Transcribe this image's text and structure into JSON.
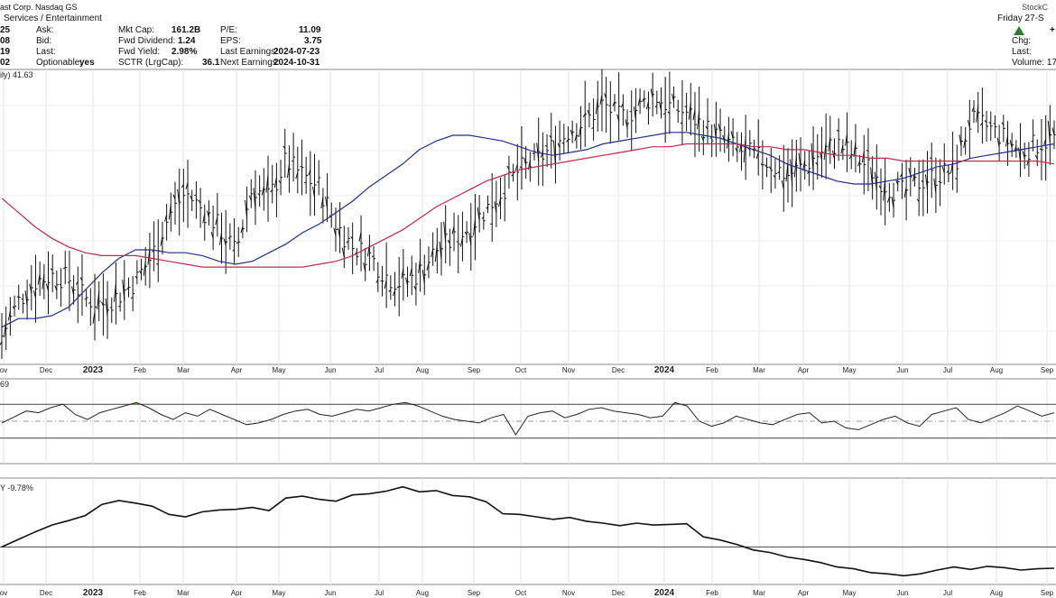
{
  "header": {
    "title": "ast Corp. Nasdaq GS",
    "sector": "Services / Entertainment",
    "date": "Friday 27-S",
    "brand": "StockC",
    "col1": [
      "25",
      "08",
      "19",
      "02"
    ],
    "col2_labels": [
      "Ask:",
      "Bid:",
      "Last:",
      "Optionable:"
    ],
    "optionable": "yes",
    "col3": [
      {
        "label": "Mkt Cap:",
        "value": "161.2B"
      },
      {
        "label": "Fwd Dividend:",
        "value": "1.24"
      },
      {
        "label": "Fwd Yield:",
        "value": "2.98%"
      },
      {
        "label": "SCTR (LrgCap):",
        "value": "36.1"
      }
    ],
    "col4": [
      {
        "label": "P/E:",
        "value": "11.09"
      },
      {
        "label": "EPS:",
        "value": "3.75"
      },
      {
        "label": "Last Earnings:",
        "value": "2024-07-23"
      },
      {
        "label": "Next Earnings:",
        "value": "2024-10-31"
      }
    ],
    "right_labels": [
      "Chg:",
      "Last:",
      "Volume: 17,"
    ],
    "plus": "+"
  },
  "chart_data": [
    {
      "type": "line",
      "panel": "price",
      "label": "ily) 41.63",
      "x_labels": [
        "ov",
        "Dec",
        "2023",
        "Feb",
        "Mar",
        "Apr",
        "May",
        "Jun",
        "Jul",
        "Aug",
        "Sep",
        "Oct",
        "Nov",
        "Dec",
        "2024",
        "Feb",
        "Mar",
        "Apr",
        "May",
        "Jun",
        "Jul",
        "Aug",
        "Sep"
      ],
      "bold_labels": [
        "2023",
        "2024"
      ],
      "series": [
        {
          "values": [
            34.0,
            35.2,
            35.9,
            36.1,
            36.0,
            35.3,
            35.1,
            35.4,
            35.9,
            36.8,
            38.2,
            39.0,
            38.4,
            37.8,
            36.9,
            39.2,
            38.8,
            40.1,
            39.6,
            39.2,
            37.9,
            37.1,
            36.8,
            36.1,
            35.8,
            36.2,
            37.0,
            37.3,
            37.8,
            38.4,
            39.1,
            39.8,
            40.1,
            40.6,
            41.2,
            41.5,
            42.1,
            41.6,
            41.9,
            42.4,
            42.0,
            41.8,
            41.3,
            40.9,
            40.5,
            40.3,
            40.0,
            39.6,
            39.9,
            40.4,
            40.7,
            40.3,
            39.8,
            39.2,
            39.0,
            39.4,
            39.6,
            39.8,
            41.5,
            41.3,
            40.9,
            40.4,
            40.7,
            40.9
          ],
          "color": "#222222"
        },
        {
          "values": [
            34.3,
            34.6,
            34.6,
            34.7,
            35.0,
            35.6,
            36.2,
            36.7,
            37.0,
            37.0,
            36.9,
            36.9,
            36.8,
            36.6,
            36.5,
            36.6,
            36.9,
            37.2,
            37.6,
            37.9,
            38.3,
            38.7,
            39.2,
            39.6,
            40.0,
            40.5,
            40.8,
            41.0,
            41.0,
            40.9,
            40.8,
            40.6,
            40.4,
            40.3,
            40.4,
            40.5,
            40.7,
            40.8,
            40.9,
            41.0,
            41.1,
            41.1,
            41.0,
            40.9,
            40.7,
            40.5,
            40.3,
            40.0,
            39.8,
            39.6,
            39.4,
            39.3,
            39.3,
            39.4,
            39.5,
            39.7,
            39.9,
            40.0,
            40.2,
            40.3,
            40.4,
            40.5,
            40.6,
            40.7
          ],
          "color": "#1f2f8f"
        },
        {
          "values": [
            38.8,
            38.3,
            37.8,
            37.4,
            37.1,
            36.9,
            36.8,
            36.8,
            36.8,
            36.7,
            36.6,
            36.5,
            36.4,
            36.4,
            36.4,
            36.4,
            36.4,
            36.4,
            36.4,
            36.5,
            36.6,
            36.8,
            37.1,
            37.4,
            37.7,
            38.1,
            38.5,
            38.8,
            39.1,
            39.4,
            39.6,
            39.8,
            39.9,
            40.0,
            40.1,
            40.2,
            40.3,
            40.4,
            40.5,
            40.6,
            40.6,
            40.7,
            40.7,
            40.7,
            40.7,
            40.6,
            40.6,
            40.5,
            40.5,
            40.4,
            40.3,
            40.3,
            40.2,
            40.2,
            40.1,
            40.1,
            40.1,
            40.1,
            40.1,
            40.1,
            40.1,
            40.1,
            40.1,
            40.0
          ],
          "color": "#c2294a"
        }
      ]
    },
    {
      "type": "line",
      "panel": "rsi",
      "label": "69",
      "ylim": [
        0,
        100
      ],
      "bands": [
        30,
        50,
        70
      ],
      "values": [
        48,
        55,
        62,
        60,
        66,
        70,
        58,
        52,
        60,
        64,
        68,
        72,
        66,
        58,
        52,
        60,
        56,
        64,
        58,
        52,
        46,
        48,
        52,
        58,
        62,
        64,
        58,
        56,
        60,
        64,
        62,
        66,
        70,
        72,
        68,
        62,
        56,
        52,
        50,
        48,
        54,
        58,
        34,
        56,
        60,
        62,
        54,
        58,
        64,
        66,
        62,
        60,
        58,
        54,
        56,
        72,
        68,
        50,
        44,
        48,
        56,
        52,
        48,
        46,
        52,
        58,
        60,
        48,
        50,
        42,
        40,
        46,
        52,
        56,
        48,
        44,
        58,
        62,
        66,
        52,
        48,
        54,
        60,
        68,
        62,
        56,
        60
      ]
    },
    {
      "type": "line",
      "panel": "relative",
      "label": "Y -9.78%",
      "values": [
        0.0,
        1.2,
        2.4,
        3.5,
        4.2,
        5.0,
        6.8,
        7.4,
        7.0,
        6.5,
        5.2,
        4.8,
        5.6,
        5.9,
        6.0,
        6.3,
        5.8,
        7.8,
        8.1,
        7.6,
        7.3,
        8.3,
        8.5,
        8.9,
        9.6,
        8.8,
        9.0,
        8.2,
        8.0,
        7.2,
        5.3,
        5.2,
        4.8,
        4.4,
        4.7,
        4.1,
        3.8,
        3.4,
        3.8,
        3.5,
        3.6,
        3.7,
        1.6,
        1.1,
        0.4,
        -0.5,
        -0.9,
        -1.6,
        -2.0,
        -2.5,
        -3.2,
        -3.5,
        -4.1,
        -4.3,
        -4.6,
        -4.3,
        -3.7,
        -3.2,
        -3.6,
        -3.1,
        -3.3,
        -3.7,
        -3.5,
        -3.4
      ]
    }
  ]
}
